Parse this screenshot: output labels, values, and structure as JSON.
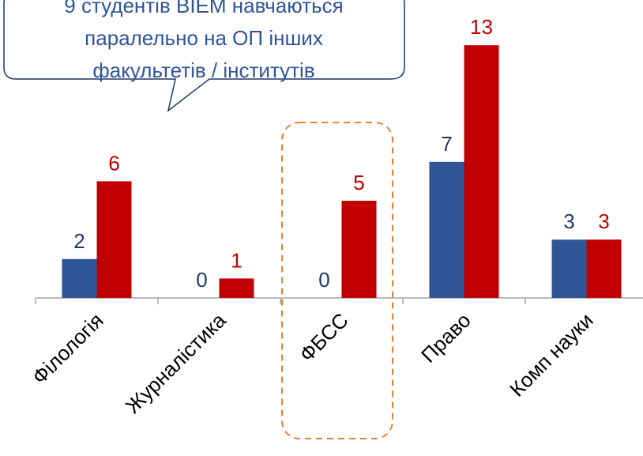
{
  "chart_data": {
    "type": "bar",
    "annotation": [
      "9 студентів ВІЕМ навчаються",
      "паралельно на ОП інших",
      "факультетів / інститутів"
    ],
    "categories": [
      "Філологія",
      "Журналістика",
      "ФБСС",
      "Право",
      "Комп науки"
    ],
    "series": [
      {
        "color": "#2f5597",
        "values": [
          2,
          0,
          0,
          7,
          3
        ]
      },
      {
        "color": "#c00000",
        "values": [
          6,
          1,
          5,
          13,
          3
        ]
      }
    ],
    "ylim": [
      0,
      15
    ]
  }
}
